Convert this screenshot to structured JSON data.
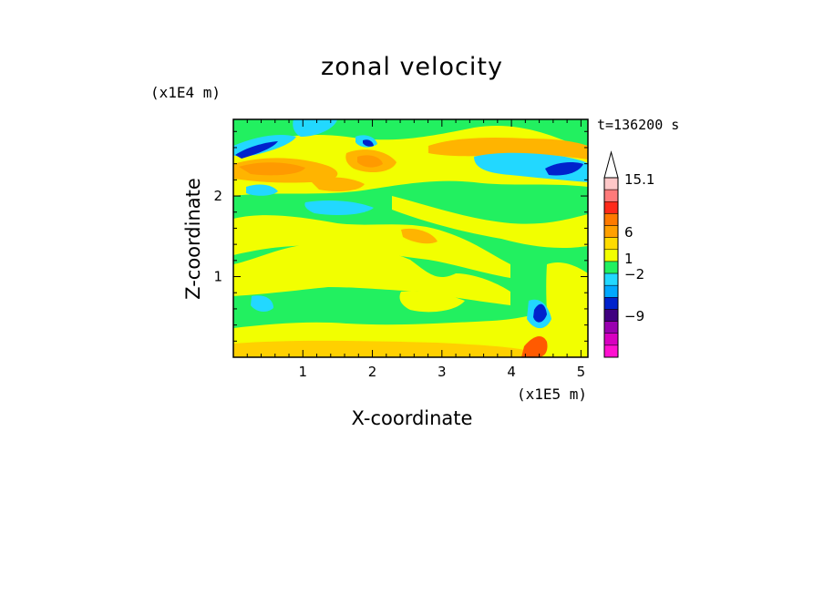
{
  "chart_data": {
    "type": "heatmap",
    "title": "zonal velocity",
    "xlabel": "X-coordinate",
    "ylabel": "Z-coordinate",
    "x_unit": "(x1E5 m)",
    "y_unit": "(x1E4 m)",
    "time_label": "t=136200 s",
    "xlim": [
      0,
      5.1
    ],
    "ylim": [
      0,
      2.95
    ],
    "x_ticks": [
      "1",
      "2",
      "3",
      "4",
      "5"
    ],
    "y_ticks": [
      "1",
      "2"
    ],
    "colorbar": {
      "labels": [
        "15.1",
        "6",
        "1",
        "−2",
        "−9"
      ],
      "colors": [
        "#ffc8c8",
        "#ff7a7a",
        "#ff2a1a",
        "#ff7a00",
        "#ffa000",
        "#ffdc00",
        "#f2ff00",
        "#22f060",
        "#22d8ff",
        "#00a8ff",
        "#0022cc",
        "#400080",
        "#9a00b0",
        "#d800c0",
        "#ff10d0"
      ]
    },
    "colors": {
      "green": "#22f060",
      "yellow": "#f2ff00",
      "light_orange": "#ffd000",
      "orange": "#ff9a00",
      "cyan": "#22d8ff",
      "blue": "#0022cc",
      "red_orange": "#ff5a00"
    }
  }
}
